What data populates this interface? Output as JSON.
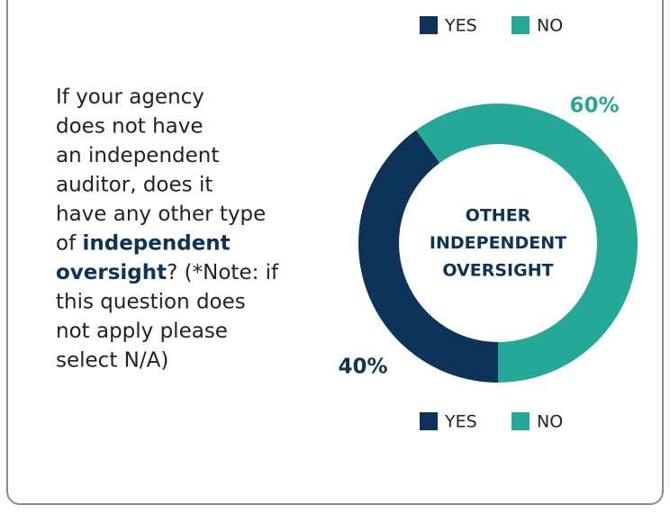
{
  "question": [
    [
      {
        "text": "If your agency"
      }
    ],
    [
      {
        "text": "does not have"
      }
    ],
    [
      {
        "text": "an independent"
      }
    ],
    [
      {
        "text": "auditor, does it"
      }
    ],
    [
      {
        "text": "have any other type"
      }
    ],
    [
      {
        "text": "of "
      },
      {
        "text": "independent",
        "bold": true
      }
    ],
    [
      {
        "text": "oversight",
        "bold": true
      },
      {
        "text": "? (*Note: if"
      }
    ],
    [
      {
        "text": "this question does"
      }
    ],
    [
      {
        "text": "not apply please"
      }
    ],
    [
      {
        "text": "select N/A)"
      }
    ]
  ],
  "chart_data": {
    "type": "donut",
    "center_label": [
      "OTHER",
      "INDEPENDENT",
      "OVERSIGHT"
    ],
    "categories": [
      "YES",
      "NO"
    ],
    "values": [
      40,
      60
    ],
    "value_labels": [
      "40%",
      "60%"
    ],
    "colors": [
      "#0d3359",
      "#26a898"
    ]
  }
}
